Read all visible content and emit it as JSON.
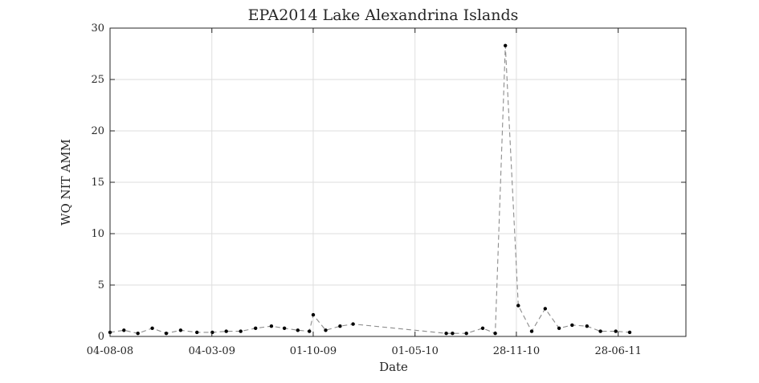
{
  "chart_data": {
    "type": "line",
    "title": "EPA2014 Lake Alexandrina Islands",
    "xlabel": "Date",
    "ylabel": "WQ NIT AMM",
    "ylim": [
      0,
      30
    ],
    "xlim": [
      "2008-08-04",
      "2011-11-16"
    ],
    "grid": true,
    "line_style": "dashed",
    "line_color": "#8c8c8c",
    "marker_color": "#000000",
    "x_ticks": [
      "2008-08-04",
      "2009-03-04",
      "2009-10-01",
      "2010-05-01",
      "2010-11-28",
      "2011-06-28"
    ],
    "x_tick_labels": [
      "04-08-08",
      "04-03-09",
      "01-10-09",
      "01-05-10",
      "28-11-10",
      "28-06-11"
    ],
    "y_ticks": [
      0,
      5,
      10,
      15,
      20,
      25,
      30
    ],
    "y_tick_labels": [
      "0",
      "5",
      "10",
      "15",
      "20",
      "25",
      "30"
    ],
    "series": [
      {
        "x": [
          "2008-08-04",
          "2008-09-02",
          "2008-10-01",
          "2008-10-31",
          "2008-11-29",
          "2008-12-29",
          "2009-02-01",
          "2009-03-05",
          "2009-04-03",
          "2009-05-03",
          "2009-06-03",
          "2009-07-06",
          "2009-08-02",
          "2009-08-30",
          "2009-09-23",
          "2009-10-01",
          "2009-10-27",
          "2009-11-26",
          "2009-12-23",
          "2010-07-05",
          "2010-07-18",
          "2010-08-16",
          "2010-09-19",
          "2010-10-15",
          "2010-11-05",
          "2010-12-02",
          "2010-12-30",
          "2011-01-27",
          "2011-02-25",
          "2011-03-24",
          "2011-04-24",
          "2011-05-22",
          "2011-06-23",
          "2011-07-22"
        ],
        "values": [
          0.4,
          0.6,
          0.3,
          0.8,
          0.3,
          0.6,
          0.4,
          0.4,
          0.5,
          0.5,
          0.8,
          1.0,
          0.8,
          0.6,
          0.5,
          2.1,
          0.6,
          1.0,
          1.2,
          0.3,
          0.3,
          0.3,
          0.8,
          0.3,
          28.3,
          3.0,
          0.5,
          2.7,
          0.8,
          1.1,
          1.0,
          0.5,
          0.5,
          0.4
        ]
      }
    ]
  }
}
